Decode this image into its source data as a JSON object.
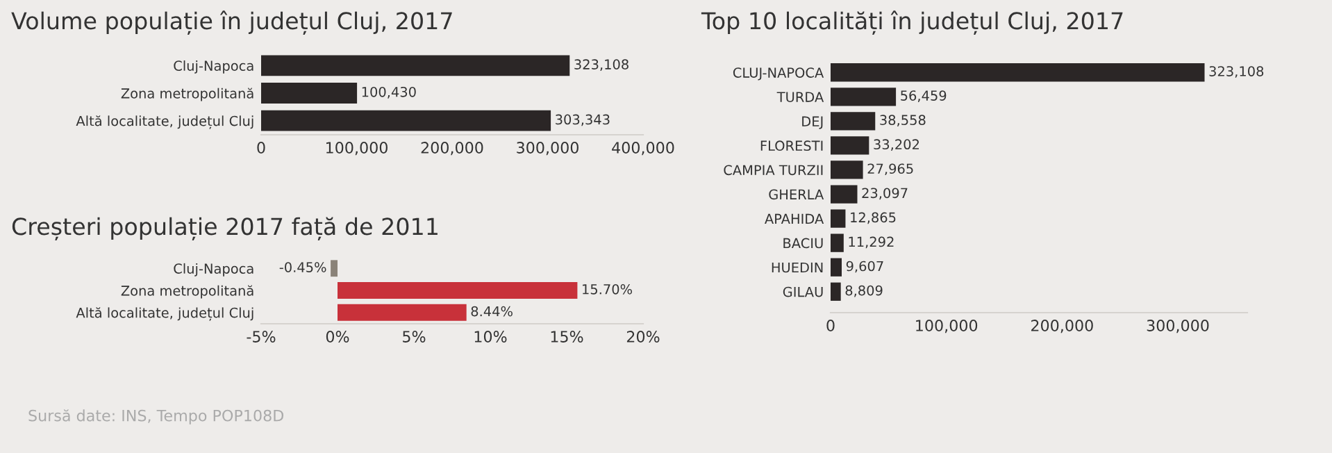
{
  "chart_data": [
    {
      "type": "bar",
      "orientation": "horizontal",
      "title": "Volume populație în județul Cluj, 2017",
      "categories": [
        "Cluj-Napoca",
        "Zona metropolitană",
        "Altă localitate, județul Cluj"
      ],
      "values": [
        323108,
        100430,
        303343
      ],
      "color": "#2b2626",
      "value_labels": [
        "323,108",
        "100,430",
        "303,343"
      ],
      "xlim": [
        0,
        400000
      ],
      "xticks": [
        {
          "value": 0,
          "label": "0"
        },
        {
          "value": 100000,
          "label": "100,000"
        },
        {
          "value": 200000,
          "label": "200,000"
        },
        {
          "value": 300000,
          "label": "300,000"
        },
        {
          "value": 400000,
          "label": "400,000"
        }
      ]
    },
    {
      "type": "bar",
      "orientation": "horizontal",
      "title": "Creșteri populație 2017 față de 2011",
      "categories": [
        "Cluj-Napoca",
        "Zona metropolitană",
        "Altă localitate, județul Cluj"
      ],
      "values": [
        -0.45,
        15.7,
        8.44
      ],
      "colors": [
        "#8a8278",
        "#c8313a",
        "#c8313a"
      ],
      "value_labels": [
        "-0.45%",
        "15.70%",
        "8.44%"
      ],
      "xlim": [
        -5,
        20
      ],
      "xticks": [
        {
          "value": -5,
          "label": "-5%"
        },
        {
          "value": 0,
          "label": "0%"
        },
        {
          "value": 5,
          "label": "5%"
        },
        {
          "value": 10,
          "label": "10%"
        },
        {
          "value": 15,
          "label": "15%"
        },
        {
          "value": 20,
          "label": "20%"
        }
      ],
      "annotations": [
        "Sursă date: INS, Tempo POP108D"
      ]
    },
    {
      "type": "bar",
      "orientation": "horizontal",
      "title": "Top 10 localități în județul Cluj, 2017",
      "categories": [
        "CLUJ-NAPOCA",
        "TURDA",
        "DEJ",
        "FLORESTI",
        "CAMPIA TURZII",
        "GHERLA",
        "APAHIDA",
        "BACIU",
        "HUEDIN",
        "GILAU"
      ],
      "values": [
        323108,
        56459,
        38558,
        33202,
        27965,
        23097,
        12865,
        11292,
        9607,
        8809
      ],
      "color": "#2b2626",
      "value_labels": [
        "323,108",
        "56,459",
        "38,558",
        "33,202",
        "27,965",
        "23,097",
        "12,865",
        "11,292",
        "9,607",
        "8,809"
      ],
      "xlim": [
        0,
        360000
      ],
      "xticks": [
        {
          "value": 0,
          "label": "0"
        },
        {
          "value": 100000,
          "label": "100,000"
        },
        {
          "value": 200000,
          "label": "200,000"
        },
        {
          "value": 300000,
          "label": "300,000"
        }
      ]
    }
  ]
}
